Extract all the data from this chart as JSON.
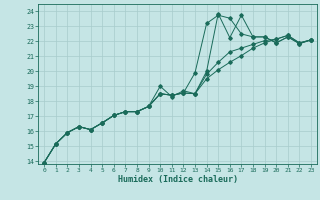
{
  "xlabel": "Humidex (Indice chaleur)",
  "xlim": [
    -0.5,
    23.5
  ],
  "ylim": [
    13.8,
    24.5
  ],
  "xticks": [
    0,
    1,
    2,
    3,
    4,
    5,
    6,
    7,
    8,
    9,
    10,
    11,
    12,
    13,
    14,
    15,
    16,
    17,
    18,
    19,
    20,
    21,
    22,
    23
  ],
  "yticks": [
    14,
    15,
    16,
    17,
    18,
    19,
    20,
    21,
    22,
    23,
    24
  ],
  "bg_color": "#c5e5e5",
  "line_color": "#1a6b5a",
  "grid_color": "#a8cccc",
  "line1_x": [
    0,
    1,
    2,
    3,
    4,
    5,
    6,
    7,
    8,
    9,
    10,
    11,
    12,
    13,
    14,
    15,
    16,
    17,
    18,
    19,
    20,
    21,
    22,
    23
  ],
  "line1_y": [
    13.9,
    15.15,
    15.9,
    16.3,
    16.1,
    16.55,
    17.05,
    17.3,
    17.3,
    17.65,
    18.5,
    18.4,
    18.55,
    19.9,
    23.2,
    23.75,
    23.55,
    22.5,
    22.3,
    22.3,
    21.9,
    22.3,
    21.85,
    22.1
  ],
  "line2_x": [
    0,
    1,
    2,
    3,
    4,
    5,
    6,
    7,
    8,
    9,
    10,
    11,
    12,
    13,
    14,
    15,
    16,
    17,
    18,
    19,
    20,
    21,
    22,
    23
  ],
  "line2_y": [
    13.9,
    15.15,
    15.9,
    16.3,
    16.1,
    16.55,
    17.05,
    17.3,
    17.3,
    17.65,
    19.0,
    18.3,
    18.7,
    18.5,
    20.0,
    23.85,
    22.25,
    23.75,
    22.3,
    22.3,
    21.9,
    22.3,
    21.85,
    22.1
  ],
  "line3_x": [
    0,
    1,
    2,
    3,
    4,
    5,
    6,
    7,
    8,
    9,
    10,
    11,
    12,
    13,
    14,
    15,
    16,
    17,
    18,
    19,
    20,
    21,
    22,
    23
  ],
  "line3_y": [
    13.9,
    15.15,
    15.9,
    16.3,
    16.1,
    16.55,
    17.05,
    17.3,
    17.3,
    17.65,
    18.5,
    18.4,
    18.55,
    18.5,
    19.5,
    20.1,
    20.6,
    21.05,
    21.55,
    21.9,
    22.15,
    22.4,
    21.9,
    22.1
  ],
  "line4_x": [
    0,
    1,
    2,
    3,
    4,
    5,
    6,
    7,
    8,
    9,
    10,
    11,
    12,
    13,
    14,
    15,
    16,
    17,
    18,
    19,
    20,
    21,
    22,
    23
  ],
  "line4_y": [
    13.9,
    15.15,
    15.9,
    16.3,
    16.1,
    16.55,
    17.05,
    17.3,
    17.3,
    17.65,
    18.5,
    18.4,
    18.55,
    18.5,
    19.8,
    20.6,
    21.3,
    21.55,
    21.8,
    22.05,
    22.15,
    22.4,
    21.9,
    22.1
  ]
}
